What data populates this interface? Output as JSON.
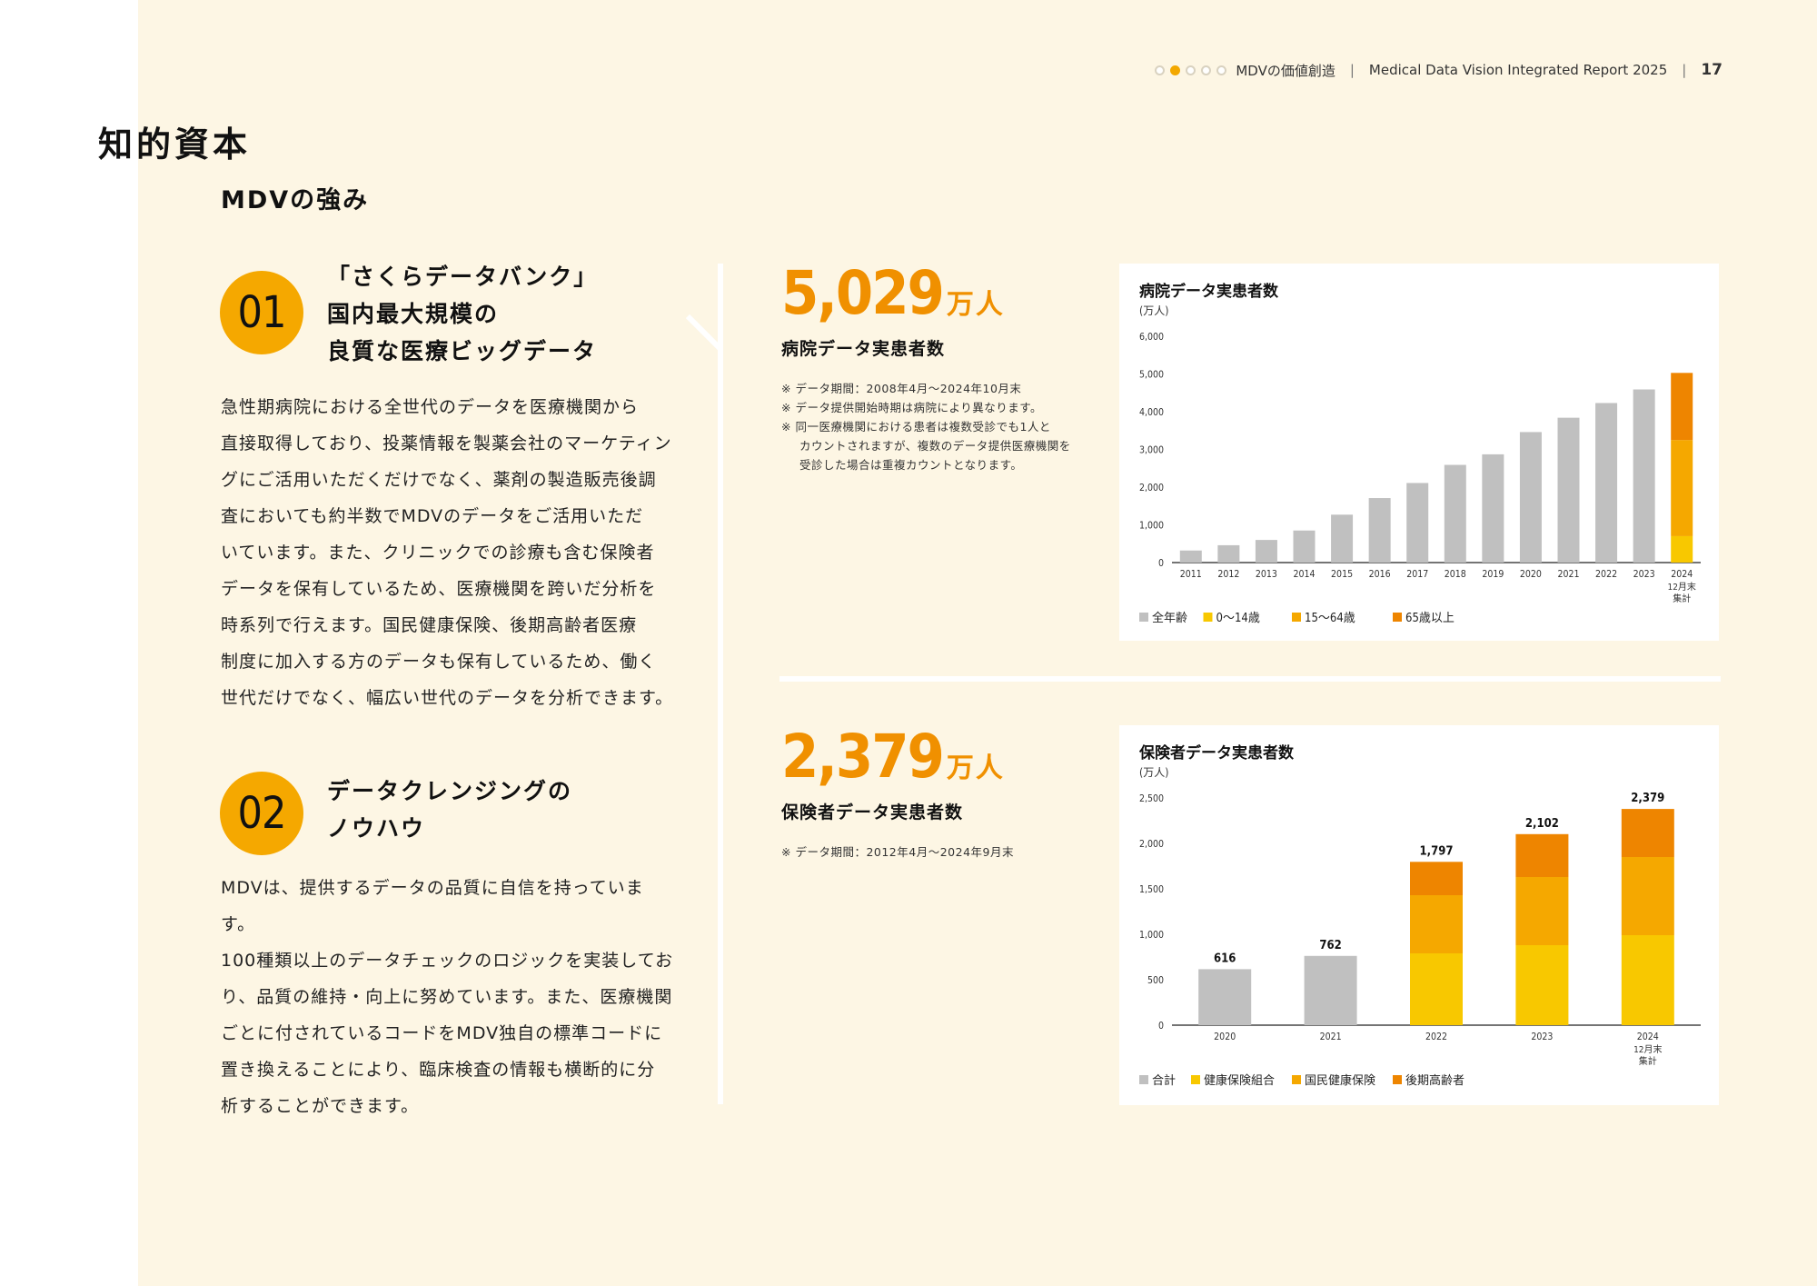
{
  "header": {
    "section": "MDVの価値創造",
    "report": "Medical Data Vision Integrated Report 2025",
    "page": "17"
  },
  "page_title": "知的資本",
  "section_title": "MDVの強み",
  "strengths": [
    {
      "number": "01",
      "title_lines": [
        "「さくらデータバンク」",
        "国内最大規模の",
        "良質な医療ビッグデータ"
      ],
      "body_lines": [
        "急性期病院における全世代のデータを医療機関から",
        "直接取得しており、投薬情報を製薬会社のマーケティン",
        "グにご活用いただくだけでなく、薬剤の製造販売後調",
        "査においても約半数でMDVのデータをご活用いただ",
        "いています。また、クリニックでの診療も含む保険者",
        "データを保有しているため、医療機関を跨いだ分析を",
        "時系列で行えます。国民健康保険、後期高齢者医療",
        "制度に加入する方のデータも保有しているため、働く",
        "世代だけでなく、幅広い世代のデータを分析できます。"
      ]
    },
    {
      "number": "02",
      "title_lines": [
        "データクレンジングの",
        "ノウハウ"
      ],
      "body_lines": [
        "MDVは、提供するデータの品質に自信を持っています。",
        "100種類以上のデータチェックのロジックを実装してお",
        "り、品質の維持・向上に努めています。また、医療機関",
        "ごとに付されているコードをMDV独自の標準コードに",
        "置き換えることにより、臨床検査の情報も横断的に分",
        "析することができます。"
      ]
    }
  ],
  "stats": [
    {
      "value": "5,029",
      "unit": "万人",
      "label": "病院データ実患者数",
      "notes": [
        "※ データ期間：2008年4月～2024年10月末",
        "※ データ提供開始時期は病院により異なります。",
        "※ 同一医療機関における患者は複数受診でも1人と\nカウントされますが、複数のデータ提供医療機関を\n受診した場合は重複カウントとなります。"
      ]
    },
    {
      "value": "2,379",
      "unit": "万人",
      "label": "保険者データ実患者数",
      "notes": [
        "※ データ期間：2012年4月～2024年9月末"
      ]
    }
  ],
  "chart_data": [
    {
      "type": "bar",
      "title": "病院データ実患者数",
      "ylabel": "(万人)",
      "ylim": [
        0,
        6000
      ],
      "yticks": [
        "6,000",
        "5,000",
        "4,000",
        "3,000",
        "2,000",
        "1,000",
        "0"
      ],
      "ytick_values": [
        6000,
        5000,
        4000,
        3000,
        2000,
        1000,
        0
      ],
      "categories": [
        "2011",
        "2012",
        "2013",
        "2014",
        "2015",
        "2016",
        "2017",
        "2018",
        "2019",
        "2020",
        "2021",
        "2022",
        "2023",
        "2024"
      ],
      "category_sublabels": {
        "2024": [
          "12月末",
          "集計"
        ]
      },
      "series": [
        {
          "name": "全年齢",
          "color": "#c0c0c0",
          "values": [
            320,
            460,
            600,
            850,
            1270,
            1710,
            2110,
            2590,
            2870,
            3460,
            3840,
            4230,
            4590,
            null
          ]
        },
        {
          "name": "0〜14歳",
          "color": "#f8c800",
          "values": [
            null,
            null,
            null,
            null,
            null,
            null,
            null,
            null,
            null,
            null,
            null,
            null,
            null,
            700
          ]
        },
        {
          "name": "15〜64歳",
          "color": "#f5a800",
          "values": [
            null,
            null,
            null,
            null,
            null,
            null,
            null,
            null,
            null,
            null,
            null,
            null,
            null,
            2550
          ]
        },
        {
          "name": "65歳以上",
          "color": "#ee8500",
          "values": [
            null,
            null,
            null,
            null,
            null,
            null,
            null,
            null,
            null,
            null,
            null,
            null,
            null,
            1779
          ]
        }
      ],
      "legend_position": "bottom-left"
    },
    {
      "type": "bar",
      "title": "保険者データ実患者数",
      "ylabel": "(万人)",
      "ylim": [
        0,
        2500
      ],
      "yticks": [
        "2,500",
        "2,000",
        "1,500",
        "1,000",
        "500",
        "0"
      ],
      "ytick_values": [
        2500,
        2000,
        1500,
        1000,
        500,
        0
      ],
      "categories": [
        "2020",
        "2021",
        "2022",
        "2023",
        "2024"
      ],
      "category_sublabels": {
        "2024": [
          "12月末",
          "集計"
        ]
      },
      "totals": [
        "616",
        "762",
        "1,797",
        "2,102",
        "2,379"
      ],
      "series": [
        {
          "name": "合計",
          "color": "#c0c0c0",
          "values": [
            616,
            762,
            null,
            null,
            null
          ]
        },
        {
          "name": "健康保険組合",
          "color": "#f8c800",
          "values": [
            null,
            null,
            790,
            880,
            990
          ]
        },
        {
          "name": "国民健康保険",
          "color": "#f5a800",
          "values": [
            null,
            null,
            640,
            750,
            860
          ]
        },
        {
          "name": "後期高齢者",
          "color": "#ee8500",
          "values": [
            null,
            null,
            367,
            472,
            529
          ]
        }
      ],
      "legend_position": "bottom-left"
    }
  ]
}
